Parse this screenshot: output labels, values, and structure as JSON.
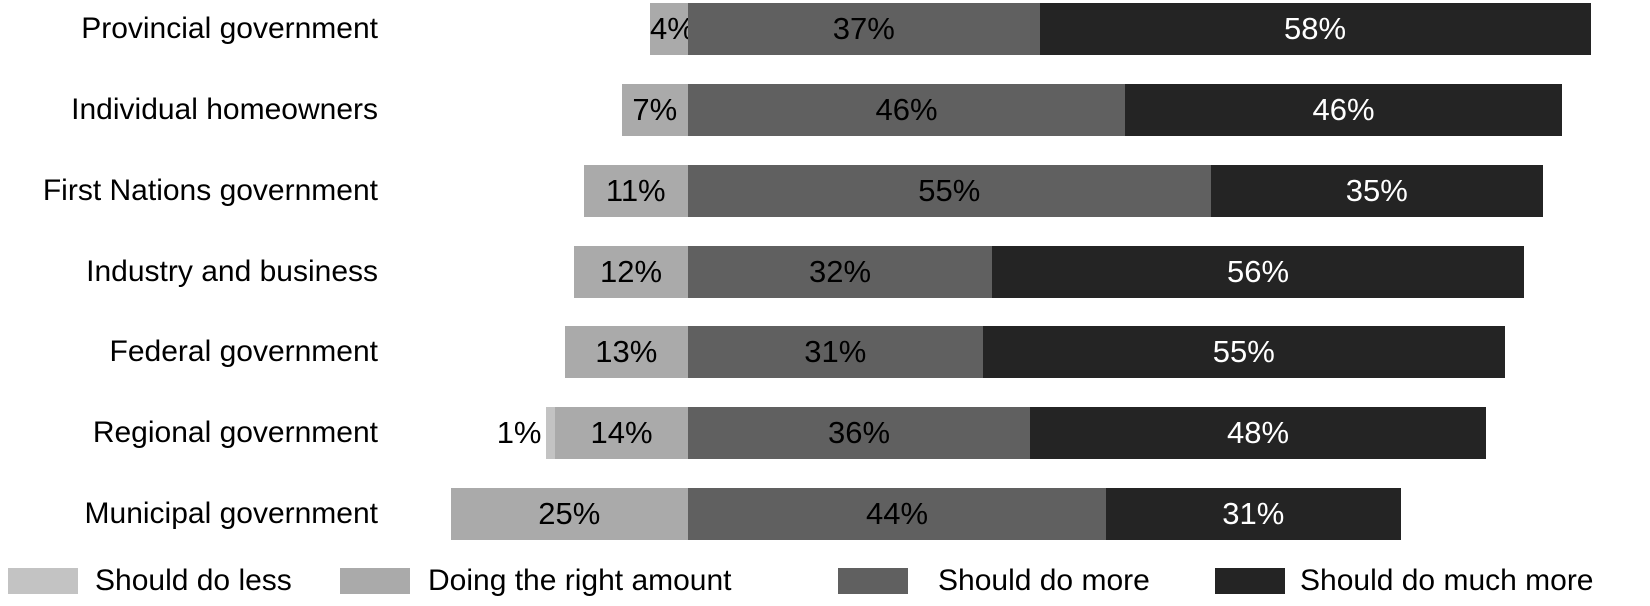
{
  "chart_data": {
    "type": "bar",
    "orientation": "horizontal",
    "stacked": true,
    "diverging": true,
    "title": "",
    "xlabel": "",
    "ylabel": "",
    "unit": "%",
    "axis_visible": false,
    "grid": false,
    "legend_position": "bottom",
    "categories": [
      "Provincial government",
      "Individual homeowners",
      "First Nations government",
      "Industry and business",
      "Federal government",
      "Regional government",
      "Municipal government"
    ],
    "series": [
      {
        "name": "Should do less",
        "color": "#c3c3c3",
        "values": [
          0,
          0,
          0,
          0,
          0,
          1,
          0
        ]
      },
      {
        "name": "Doing the right amount",
        "color": "#aaaaaa",
        "values": [
          4,
          7,
          11,
          12,
          13,
          14,
          25
        ]
      },
      {
        "name": "Should do more",
        "color": "#606060",
        "values": [
          37,
          46,
          55,
          32,
          31,
          36,
          44
        ]
      },
      {
        "name": "Should do much more",
        "color": "#242424",
        "values": [
          58,
          46,
          35,
          56,
          55,
          48,
          31
        ]
      }
    ],
    "value_label_format": "{value}%",
    "value_label_colors": {
      "Should do less": "#000000",
      "Doing the right amount": "#000000",
      "Should do more": "#000000",
      "Should do much more": "#ffffff"
    }
  },
  "colors": {
    "background": "#ffffff",
    "text": "#000000"
  }
}
